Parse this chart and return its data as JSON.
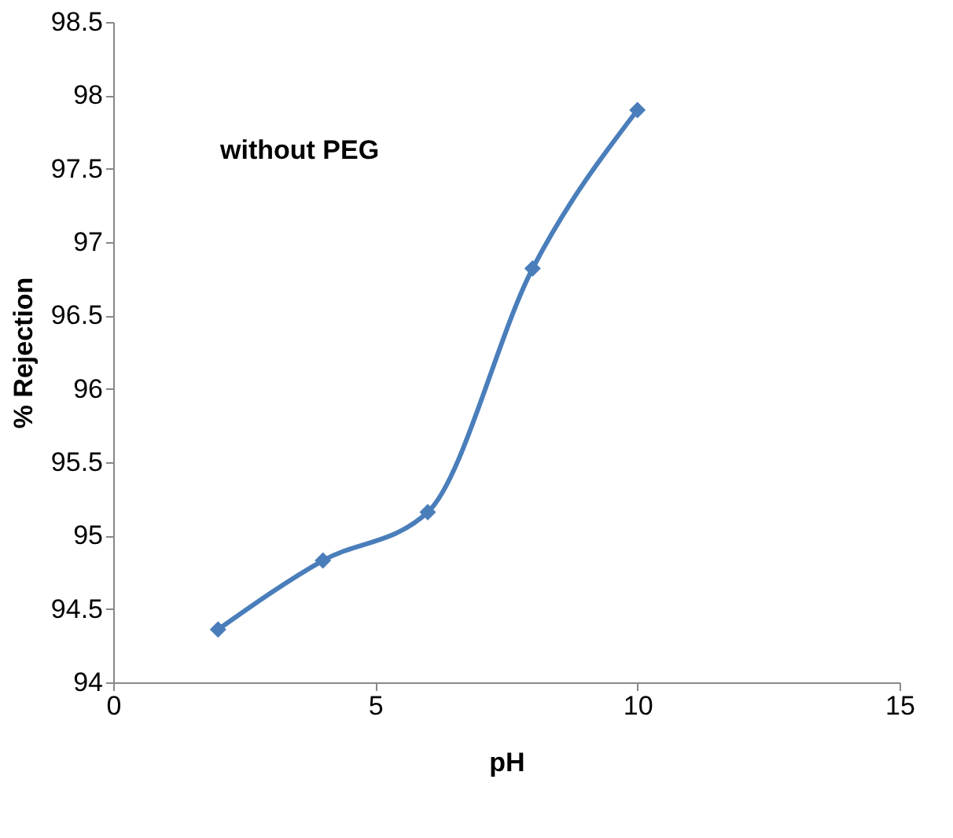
{
  "chart_data": {
    "type": "line",
    "xlabel": "pH",
    "ylabel": "% Rejection",
    "x": [
      2,
      4,
      6,
      8,
      10
    ],
    "series": [
      {
        "color": "#4a7ebb",
        "values": [
          94.36,
          94.83,
          95.16,
          96.82,
          97.9
        ]
      }
    ],
    "xlim": [
      0,
      15
    ],
    "xticks": [
      0,
      5,
      10,
      15
    ],
    "ylim": [
      94,
      98.5
    ],
    "yticks": [
      94,
      94.5,
      95,
      95.5,
      96,
      96.5,
      97,
      97.5,
      98,
      98.5
    ],
    "annotations": [
      "without PEG"
    ],
    "marker": "diamond",
    "line_style": "solid",
    "grid": false
  }
}
